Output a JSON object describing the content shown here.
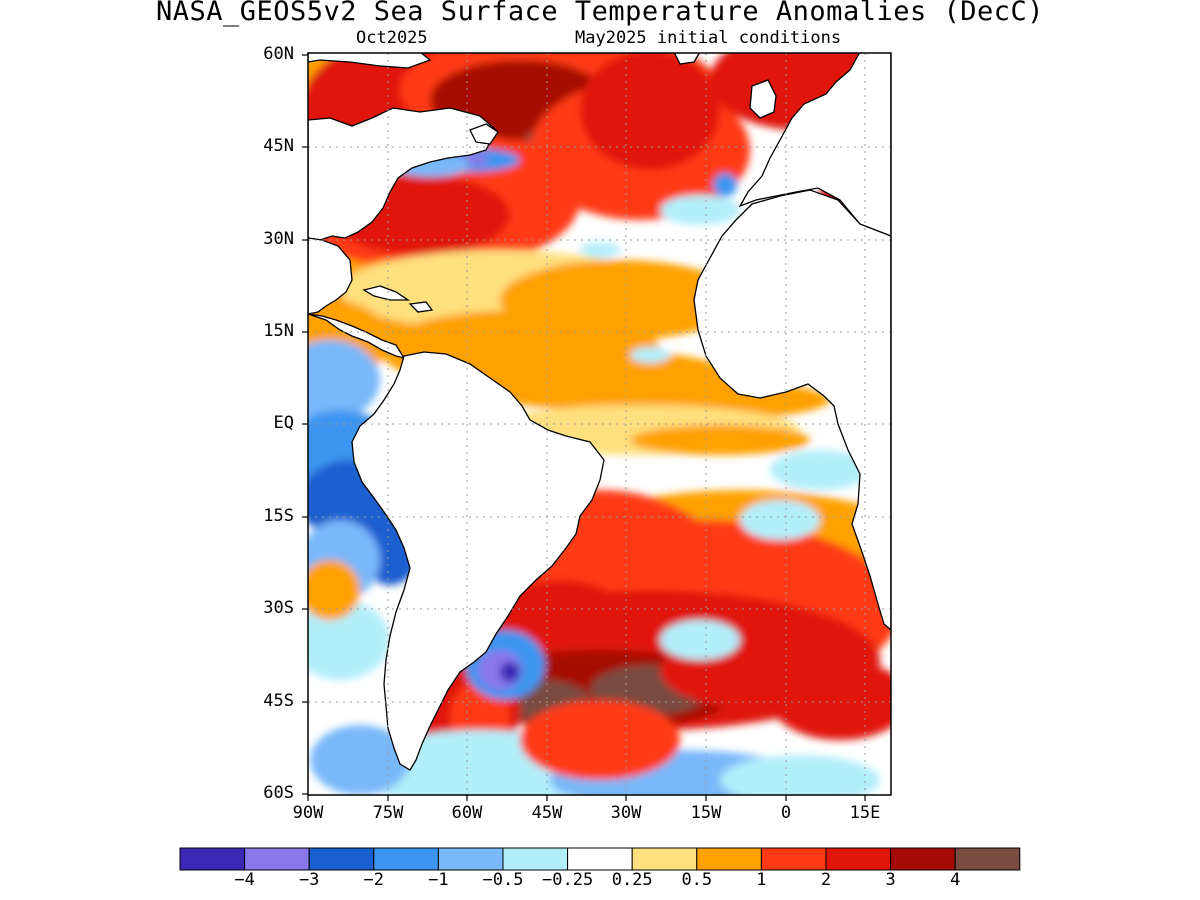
{
  "title": "NASA_GEOS5v2 Sea Surface Temperature Anomalies (DecC)",
  "left_subtitle": "Oct2025",
  "right_subtitle": "May2025 initial conditions",
  "map": {
    "lat_labels": [
      "60N",
      "45N",
      "30N",
      "15N",
      "EQ",
      "15S",
      "30S",
      "45S",
      "60S"
    ],
    "lon_labels": [
      "90W",
      "75W",
      "60W",
      "45W",
      "30W",
      "15W",
      "0",
      "15E"
    ],
    "lon_range": [
      -90,
      20
    ],
    "lat_range": [
      -60,
      60
    ],
    "land_color": "#ffffff",
    "coastline_color": "#000000",
    "grid": "dotted"
  },
  "colorbar": {
    "colors": [
      "#3a27b4",
      "#8a77ea",
      "#1a5fcf",
      "#3c95f0",
      "#79b8fa",
      "#b2eefa",
      "#ffffff",
      "#ffe07e",
      "#ffa100",
      "#ff3a14",
      "#e01508",
      "#a60a04",
      "#7a4c40"
    ],
    "labels": [
      "−4",
      "−3",
      "−2",
      "−1",
      "−0.5",
      "−0.25",
      "0.25",
      "0.5",
      "1",
      "2",
      "3",
      "4"
    ]
  },
  "chart_data": {
    "type": "heatmap",
    "variable": "Sea Surface Temperature Anomalies",
    "units": "DecC",
    "model": "NASA_GEOS5v2",
    "valid": "Oct2025",
    "initial_conditions": "May2025",
    "levels": [
      -4,
      -3,
      -2,
      -1,
      -0.5,
      -0.25,
      0.25,
      0.5,
      1,
      2,
      3,
      4
    ]
  }
}
